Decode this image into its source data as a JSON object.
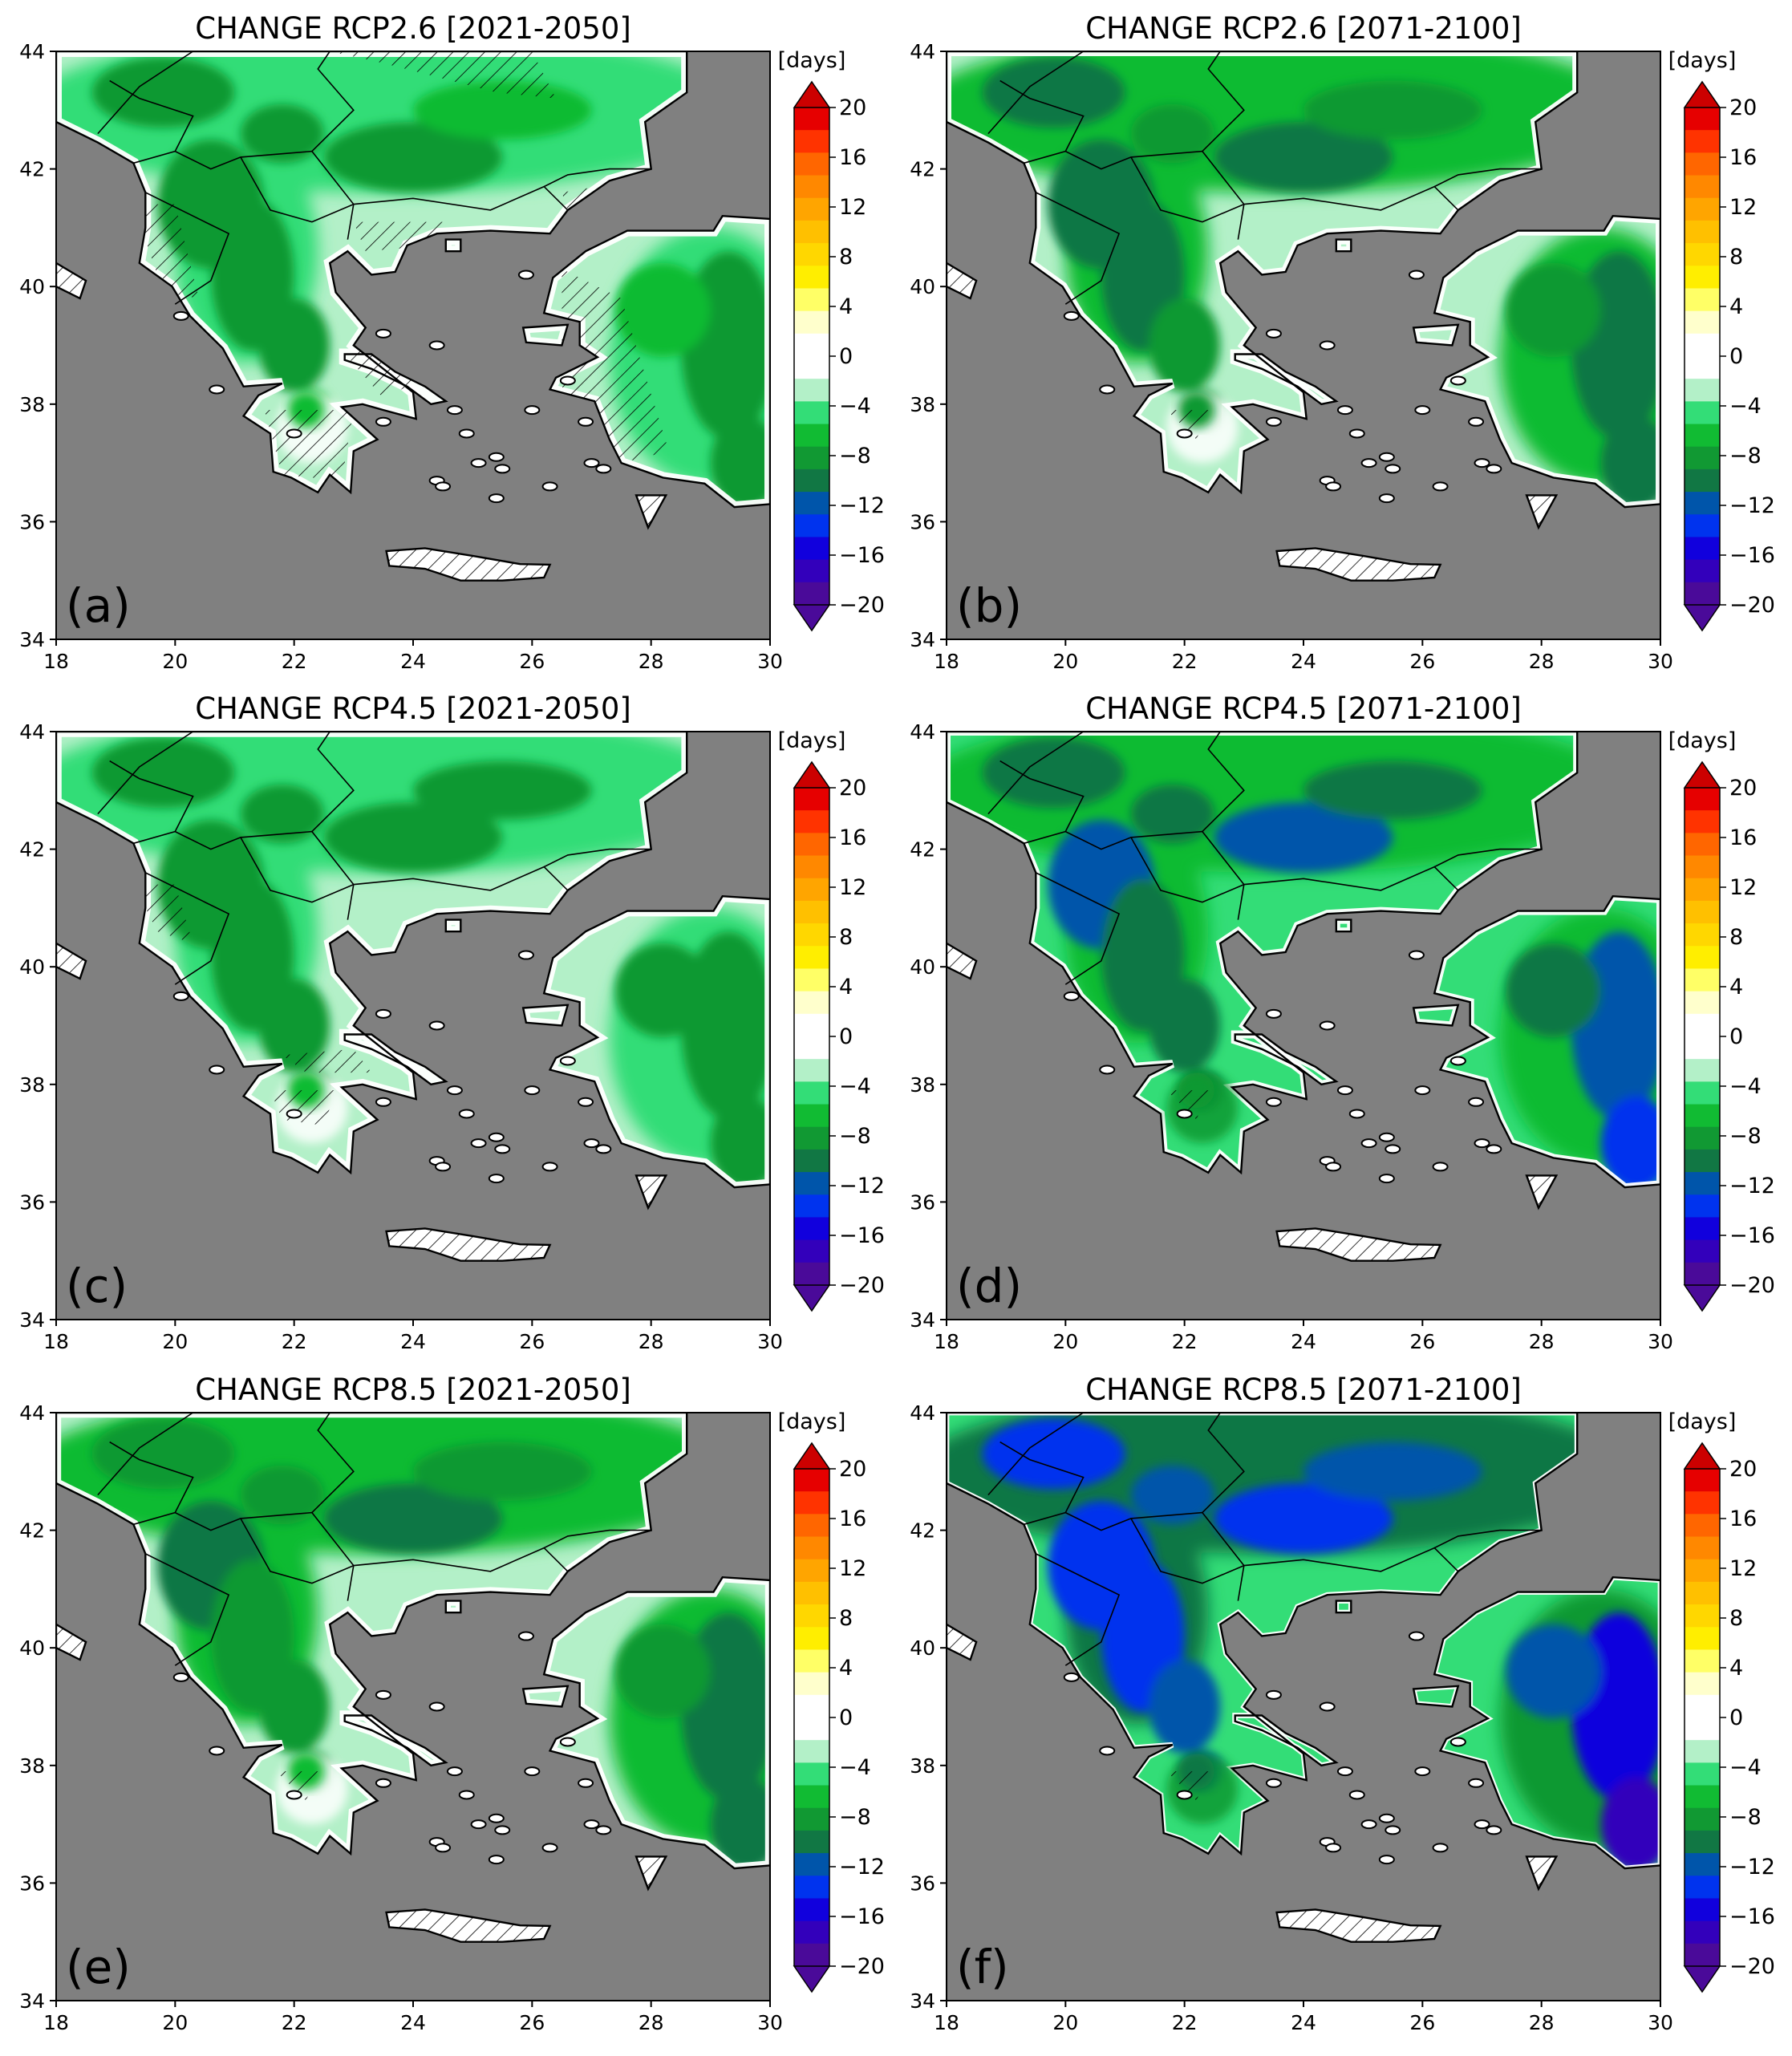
{
  "figure": {
    "panels": [
      {
        "id": "a",
        "letter": "(a)",
        "title": "CHANGE RCP2.6 [2021-2050]",
        "intensity": 1.0,
        "hatch": "heavy"
      },
      {
        "id": "b",
        "letter": "(b)",
        "title": "CHANGE RCP2.6 [2071-2100]",
        "intensity": 1.5,
        "hatch": "light"
      },
      {
        "id": "c",
        "letter": "(c)",
        "title": "CHANGE RCP4.5 [2021-2050]",
        "intensity": 1.1,
        "hatch": "medium"
      },
      {
        "id": "d",
        "letter": "(d)",
        "title": "CHANGE RCP4.5 [2071-2100]",
        "intensity": 2.0,
        "hatch": "light"
      },
      {
        "id": "e",
        "letter": "(e)",
        "title": "CHANGE RCP8.5 [2021-2050]",
        "intensity": 1.4,
        "hatch": "light"
      },
      {
        "id": "f",
        "letter": "(f)",
        "title": "CHANGE RCP8.5 [2071-2100]",
        "intensity": 2.8,
        "hatch": "light"
      }
    ],
    "x_ticks": [
      "18",
      "20",
      "22",
      "24",
      "26",
      "28",
      "30"
    ],
    "y_ticks": [
      "34",
      "36",
      "38",
      "40",
      "42",
      "44"
    ],
    "colorbar": {
      "unit": "[days]",
      "ticks": [
        "20",
        "16",
        "12",
        "8",
        "4",
        "0",
        "−4",
        "−8",
        "−12",
        "−16",
        "−20"
      ],
      "colors": [
        "#e60000",
        "#ff3300",
        "#ff6600",
        "#ff8800",
        "#ffa500",
        "#ffc000",
        "#ffd700",
        "#ffee00",
        "#ffff66",
        "#ffffcc",
        "#ffffff",
        "#ffffff",
        "#b3f0c8",
        "#33dd77",
        "#11bb33",
        "#119933",
        "#117744",
        "#0055aa",
        "#0033ee",
        "#1100dd",
        "#3300bb",
        "#4a0a99"
      ],
      "extend_top_color": "#cc0000",
      "extend_bottom_color": "#4a0a99"
    },
    "colors": {
      "sea": "#808080",
      "land_white": "#ffffff",
      "coast": "#000000",
      "hatch": "#000000"
    }
  }
}
